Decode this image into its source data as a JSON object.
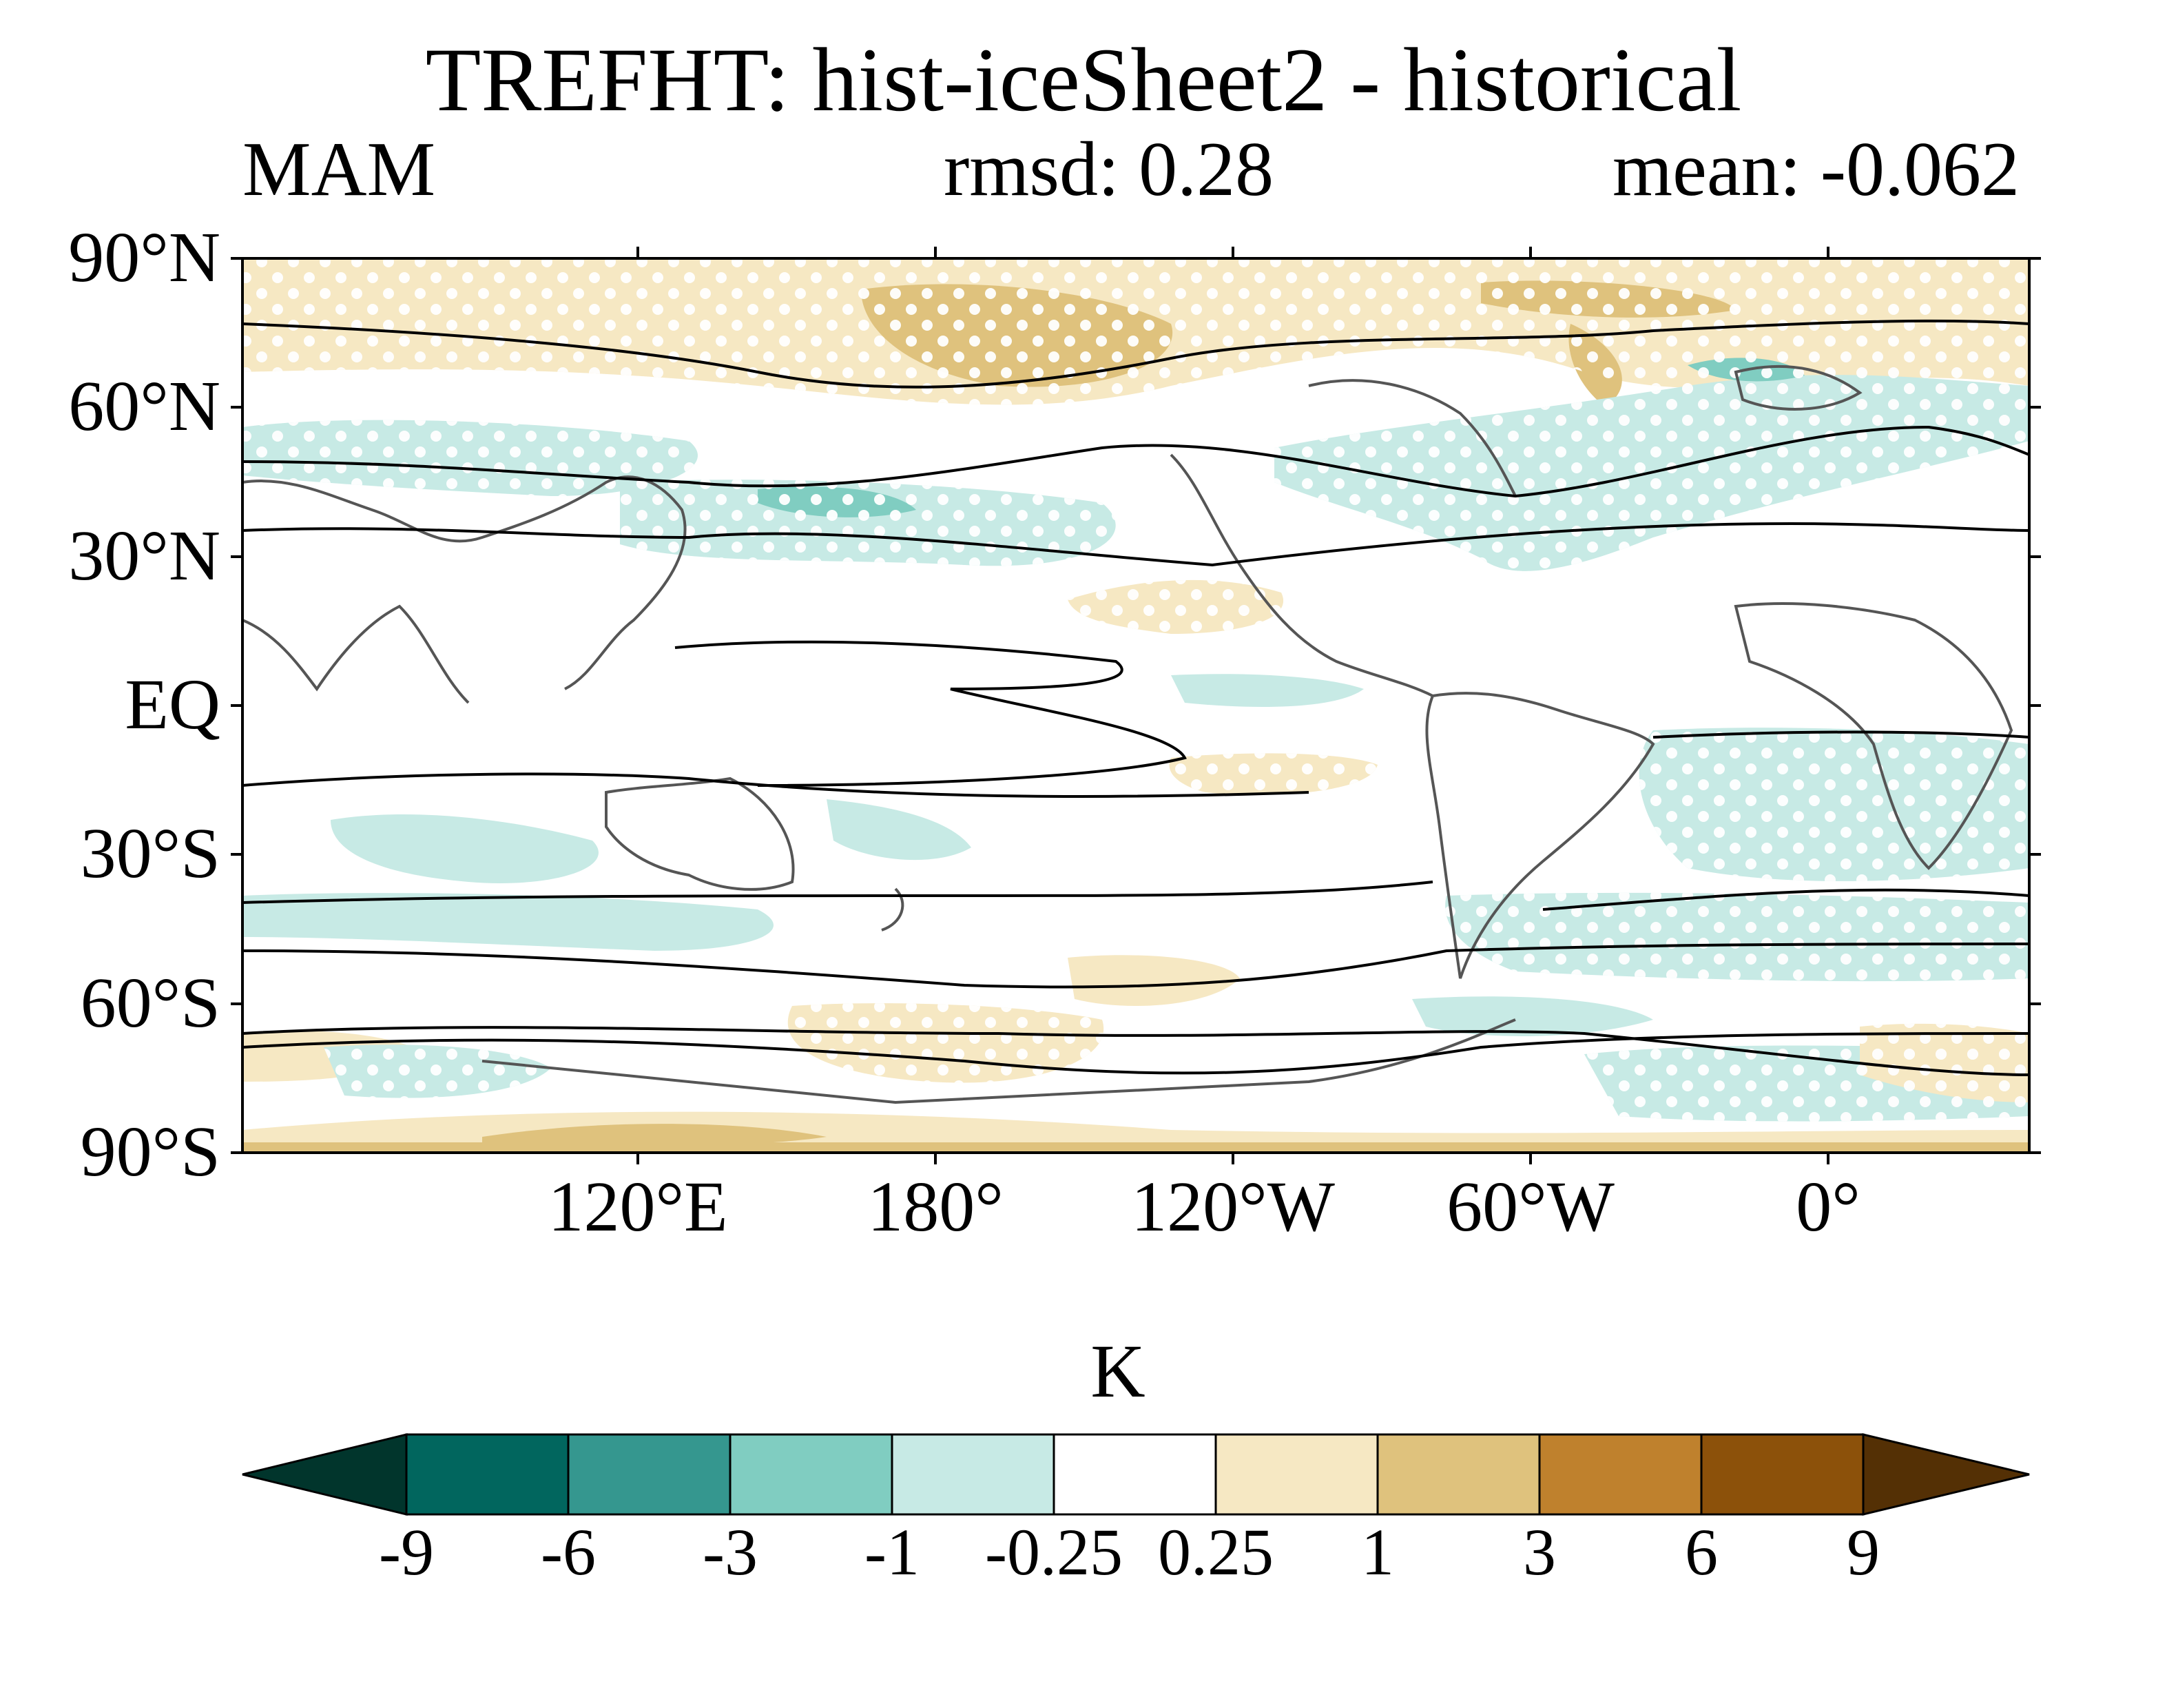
{
  "title": "TREFHT: hist-iceSheet2 - historical",
  "season": "MAM",
  "rmsd": "rmsd: 0.28",
  "mean": "mean: -0.062",
  "lat_labels": [
    "90°N",
    "60°N",
    "30°N",
    "EQ",
    "30°S",
    "60°S",
    "90°S"
  ],
  "lon_labels": [
    "120°E",
    "180°",
    "120°W",
    "60°W",
    "0°"
  ],
  "colorbar": {
    "unit": "K",
    "labels": [
      "-9",
      "-6",
      "-3",
      "-1",
      "-0.25",
      "0.25",
      "1",
      "3",
      "6",
      "9"
    ],
    "colors": [
      "#01352c",
      "#01665e",
      "#35978f",
      "#80cdc1",
      "#c7eae5",
      "#ffffff",
      "#f6e8c3",
      "#dfc27d",
      "#bf812d",
      "#8c510a",
      "#543005"
    ]
  }
}
